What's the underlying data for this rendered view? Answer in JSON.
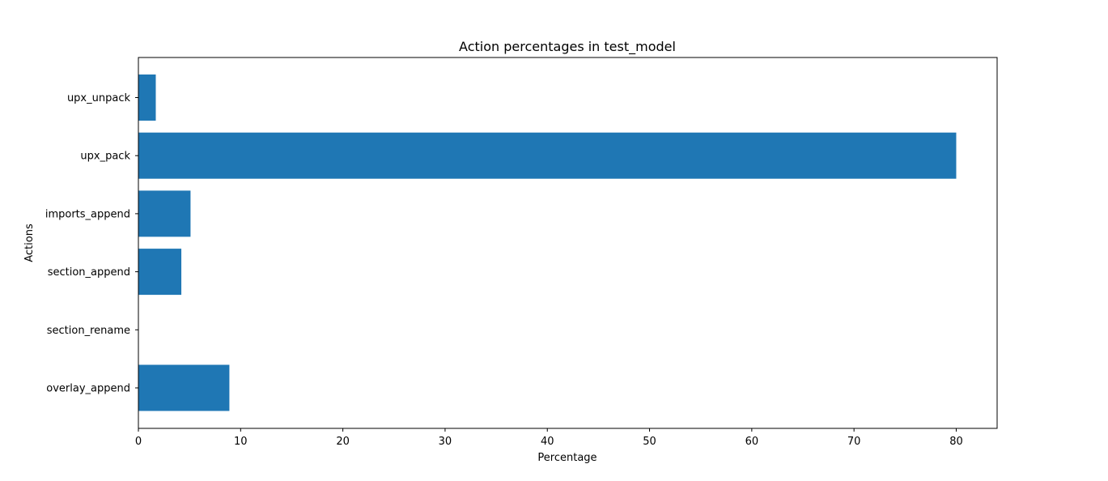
{
  "chart_data": {
    "type": "bar",
    "orientation": "horizontal",
    "title": "Action percentages in test_model",
    "xlabel": "Percentage",
    "ylabel": "Actions",
    "categories": [
      "upx_unpack",
      "upx_pack",
      "imports_append",
      "section_append",
      "section_rename",
      "overlay_append"
    ],
    "values": [
      1.7,
      80.0,
      5.1,
      4.2,
      0.0,
      8.9
    ],
    "xlim": [
      0,
      84
    ],
    "xticks": [
      0,
      10,
      20,
      30,
      40,
      50,
      60,
      70,
      80
    ],
    "grid": false,
    "legend": "none",
    "bar_color": "#1f77b4"
  }
}
